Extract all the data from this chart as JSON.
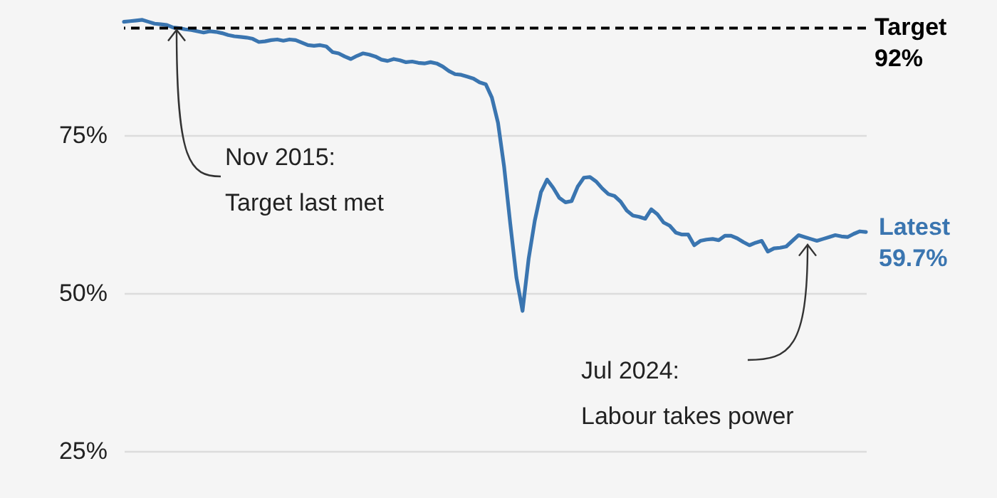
{
  "chart_data": {
    "type": "line",
    "categories": [
      null,
      null,
      null,
      null,
      null,
      null,
      null,
      null,
      null,
      null,
      null,
      null,
      null,
      null,
      null,
      null,
      null,
      null,
      null,
      null,
      null,
      null,
      null,
      null,
      null,
      null,
      null,
      null,
      null,
      null,
      null,
      null,
      null,
      null,
      null,
      null,
      null,
      null,
      null,
      null,
      null,
      null,
      null,
      null,
      null,
      null,
      null,
      null,
      null,
      null,
      null,
      null,
      null,
      null,
      null,
      null,
      null,
      null,
      null,
      null,
      null,
      null,
      null,
      null,
      null,
      null,
      null,
      null,
      null,
      null,
      null,
      null,
      null,
      null,
      null,
      null,
      null,
      null,
      null,
      null,
      null,
      null,
      null,
      null,
      null,
      null,
      null,
      null,
      null,
      null,
      null,
      null,
      null,
      null,
      null,
      null,
      null,
      null,
      null,
      null,
      null,
      null,
      null,
      null,
      null,
      null,
      null,
      null,
      null,
      null,
      null,
      null,
      null,
      null,
      null,
      null,
      null,
      null,
      null,
      null,
      null,
      null
    ],
    "series": [
      {
        "color": "#3a75b0",
        "values": [
          93.0,
          93.1,
          93.2,
          93.3,
          93.0,
          92.7,
          92.6,
          92.5,
          92.1,
          92.0,
          91.8,
          91.7,
          91.5,
          91.3,
          91.5,
          91.4,
          91.2,
          90.9,
          90.7,
          90.6,
          90.5,
          90.3,
          89.8,
          89.9,
          90.1,
          90.2,
          90.0,
          90.2,
          90.1,
          89.7,
          89.3,
          89.2,
          89.3,
          89.1,
          88.2,
          88.0,
          87.5,
          87.1,
          87.6,
          88.0,
          87.8,
          87.5,
          87.0,
          86.8,
          87.1,
          86.9,
          86.6,
          86.7,
          86.5,
          86.4,
          86.6,
          86.4,
          85.9,
          85.2,
          84.7,
          84.6,
          84.3,
          84.0,
          83.4,
          83.1,
          81.0,
          77.0,
          70.0,
          61.0,
          52.5,
          47.2,
          55.5,
          61.5,
          66.0,
          68.0,
          66.7,
          65.1,
          64.4,
          64.6,
          66.9,
          68.3,
          68.4,
          67.7,
          66.6,
          65.7,
          65.4,
          64.5,
          63.1,
          62.3,
          62.1,
          61.8,
          63.3,
          62.5,
          61.2,
          60.7,
          59.6,
          59.3,
          59.3,
          57.6,
          58.3,
          58.5,
          58.6,
          58.4,
          59.1,
          59.1,
          58.7,
          58.1,
          57.6,
          58.0,
          58.3,
          56.6,
          57.1,
          57.2,
          57.4,
          58.3,
          59.2,
          58.9,
          58.6,
          58.3,
          58.6,
          58.9,
          59.2,
          59.0,
          58.9,
          59.4,
          59.8,
          59.7
        ]
      }
    ],
    "ylim": [
      25,
      96
    ],
    "yticks": [
      {
        "value": 25,
        "label": "25%"
      },
      {
        "value": 50,
        "label": "50%"
      },
      {
        "value": 75,
        "label": "75%"
      }
    ],
    "tick_labels": "y",
    "grid": "y",
    "line_style": "solid",
    "ref_lines": [
      {
        "axis": "y",
        "value": 92,
        "label": "Target\n92%",
        "color": "#000000",
        "line_style": "dashed"
      }
    ],
    "annotations": [
      "Nov 2015:\nTarget last met",
      "Jul 2024:\nLabour takes power",
      "Latest\n59.7%"
    ]
  }
}
